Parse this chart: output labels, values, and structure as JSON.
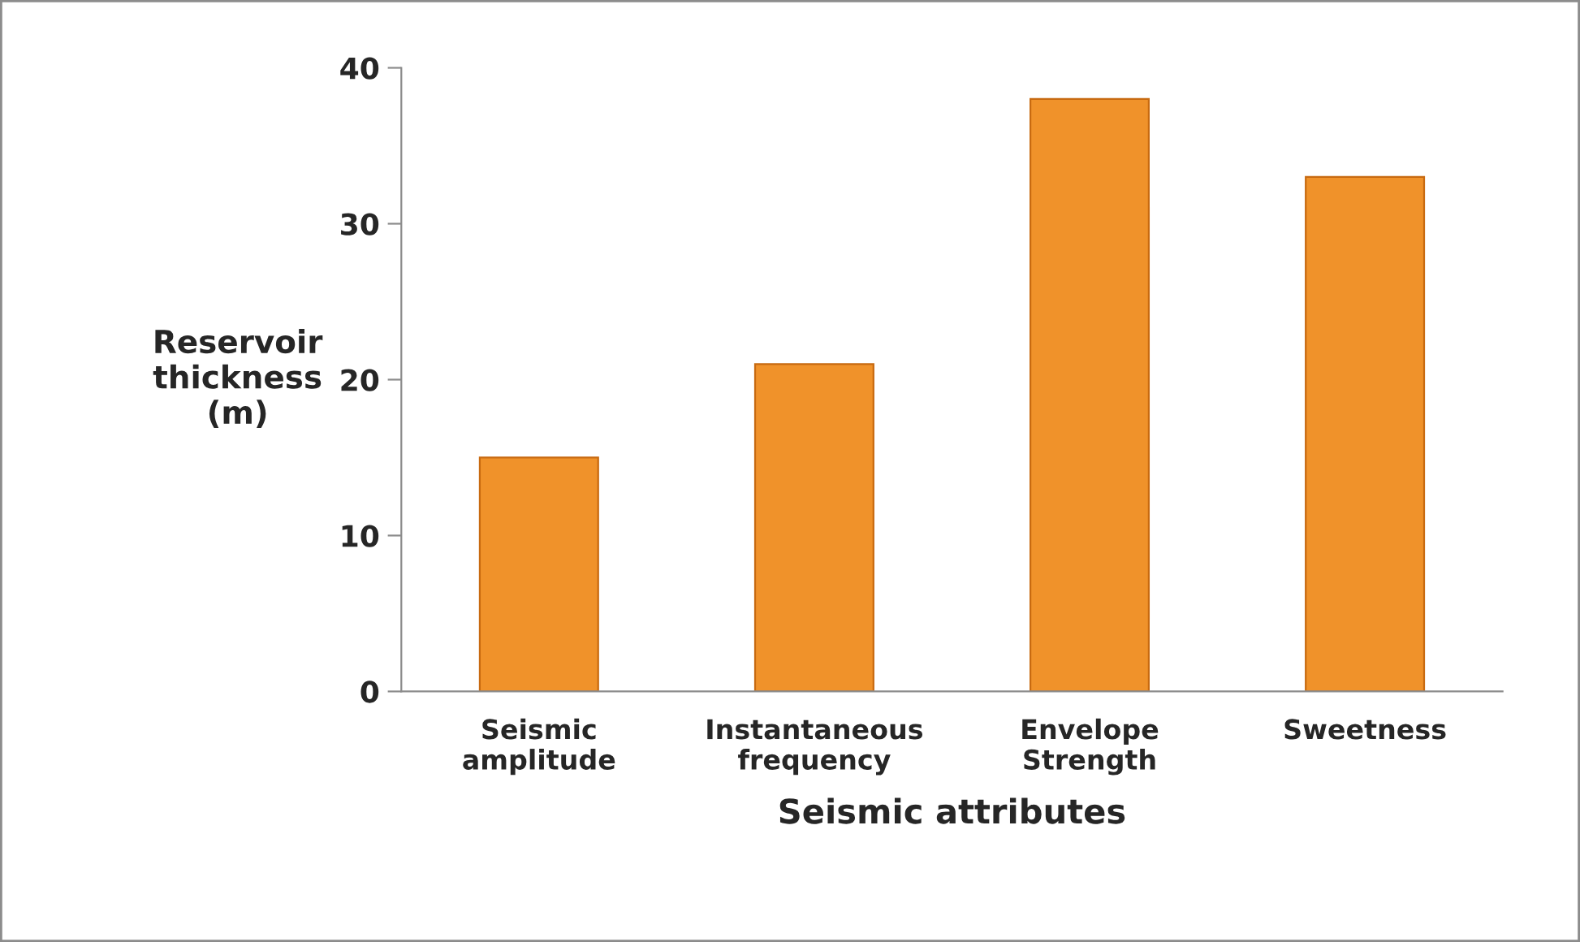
{
  "chart_data": {
    "type": "bar",
    "xlabel": "Seismic attributes",
    "ylabel": "Reservoir\nthickness\n(m)",
    "categories": [
      "Seismic\namplitude",
      "Instantaneous\nfrequency",
      "Envelope\nStrength",
      "Sweetness"
    ],
    "values": [
      15,
      21,
      38,
      33
    ],
    "color": "#f0922a",
    "ylim": [
      0,
      40
    ],
    "yticks": [
      0,
      10,
      20,
      30,
      40
    ],
    "grid": false,
    "legend": false
  }
}
